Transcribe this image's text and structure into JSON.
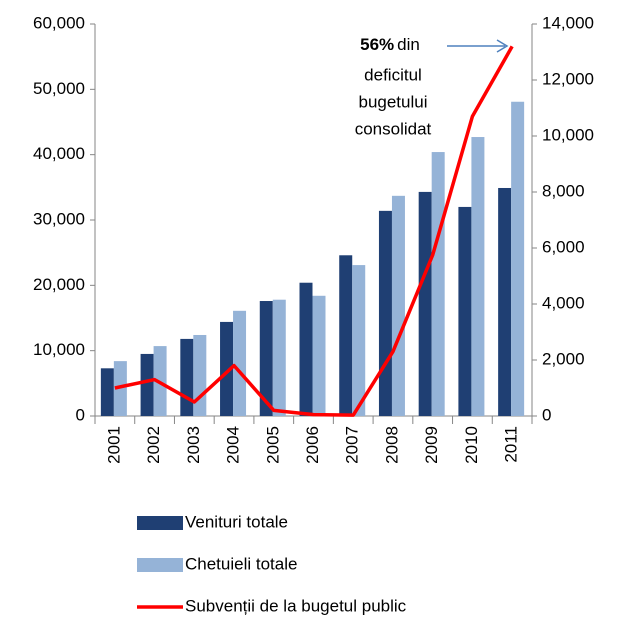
{
  "chart_data": {
    "type": "bar-line",
    "categories": [
      "2001",
      "2002",
      "2003",
      "2004",
      "2005",
      "2006",
      "2007",
      "2008",
      "2009",
      "2010",
      "2011"
    ],
    "series": [
      {
        "name": "Venituri totale",
        "color": "#1f3f73",
        "type": "bar",
        "values": [
          7300,
          9500,
          11800,
          14400,
          17600,
          20400,
          24600,
          31400,
          34300,
          32000,
          34900
        ]
      },
      {
        "name": "Chetuieli totale",
        "color": "#95b3d7",
        "type": "bar",
        "values": [
          8400,
          10700,
          12400,
          16100,
          17800,
          18400,
          23100,
          33700,
          40400,
          42700,
          48100
        ]
      },
      {
        "name": "Subvenții de la bugetul public",
        "color": "#ff0000",
        "type": "line",
        "axis": "y2",
        "values": [
          1000,
          1300,
          500,
          1800,
          200,
          50,
          30,
          2300,
          5750,
          10700,
          13200
        ]
      }
    ],
    "ylim": [
      0,
      60000
    ],
    "yticks": [
      0,
      {
        "value": 10000,
        "label": "10,000"
      },
      {
        "value": 20000,
        "label": "20,000"
      },
      {
        "value": 30000,
        "label": "30,000"
      },
      {
        "value": 40000,
        "label": "40,000"
      },
      {
        "value": 50000,
        "label": "50,000"
      },
      {
        "value": 60000,
        "label": "60,000"
      }
    ],
    "y2lim": [
      0,
      14000
    ],
    "y2ticks": [
      0,
      {
        "value": 2000,
        "label": "2,000"
      },
      {
        "value": 4000,
        "label": "4,000"
      },
      {
        "value": 6000,
        "label": "6,000"
      },
      {
        "value": 8000,
        "label": "8,000"
      },
      {
        "value": 10000,
        "label": "10,000"
      },
      {
        "value": 12000,
        "label": "12,000"
      },
      {
        "value": 14000,
        "label": "14,000"
      }
    ],
    "annotation": {
      "bold": "56%",
      "lines": [
        "din",
        "deficitul",
        "bugetului",
        "consolidat"
      ]
    },
    "grid": false
  }
}
